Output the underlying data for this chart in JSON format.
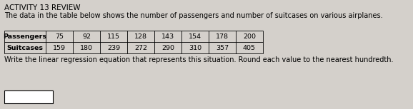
{
  "title": "ACTIVITY 13 REVIEW",
  "description": "The data in the table below shows the number of passengers and number of suitcases on various airplanes.",
  "row_labels": [
    "Passengers",
    "Suitcases"
  ],
  "passengers": [
    75,
    92,
    115,
    128,
    143,
    154,
    178,
    200
  ],
  "suitcases": [
    159,
    180,
    239,
    272,
    290,
    310,
    357,
    405
  ],
  "footer": "Write the linear regression equation that represents this situation. Round each value to the nearest hundredth.",
  "bg_color": "#d4d0cb",
  "title_fontsize": 7.5,
  "body_fontsize": 7.0,
  "table_fontsize": 6.8,
  "footer_fontsize": 7.0,
  "cell_bg": "#d4d0cb",
  "cell_edge": "#000000",
  "answer_box_color": "#ffffff"
}
